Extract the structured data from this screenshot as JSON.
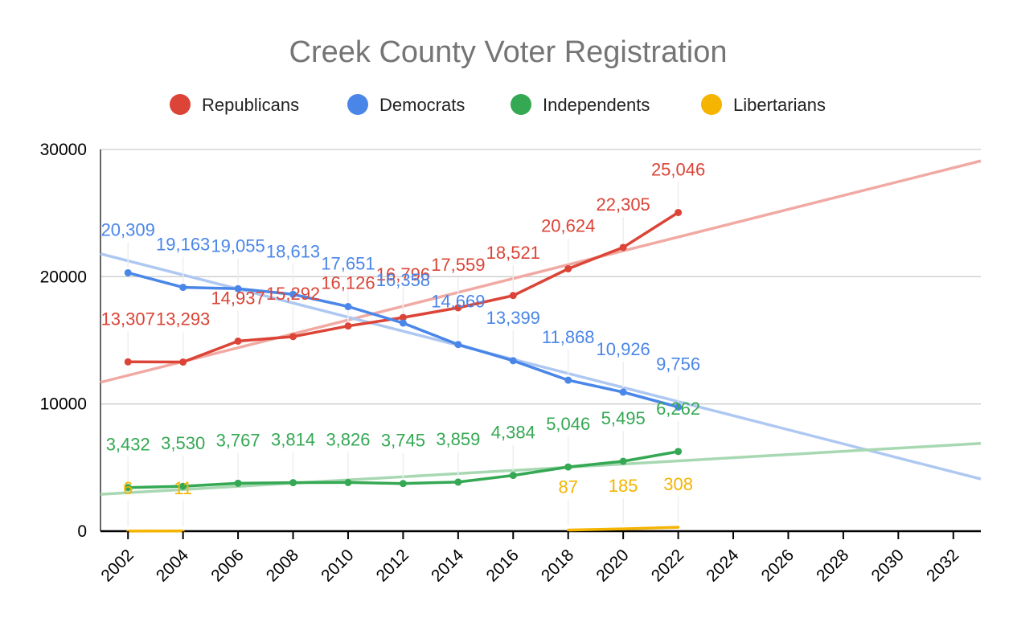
{
  "chart_data": {
    "type": "line",
    "title": "Creek County Voter Registration",
    "xlabel": "",
    "ylabel": "",
    "ylim": [
      0,
      30000
    ],
    "xlim": [
      2001,
      2033
    ],
    "y_ticks": [
      "0",
      "10000",
      "20000",
      "30000"
    ],
    "x_ticks": [
      "2002",
      "2004",
      "2006",
      "2008",
      "2010",
      "2012",
      "2014",
      "2016",
      "2018",
      "2020",
      "2022",
      "2024",
      "2026",
      "2028",
      "2030",
      "2032"
    ],
    "legend_position": "top",
    "grid": true,
    "series": [
      {
        "name": "Republicans",
        "color": "#db4437",
        "trend_color": "#f0aaa3",
        "x": [
          2002,
          2004,
          2006,
          2008,
          2010,
          2012,
          2014,
          2016,
          2018,
          2020,
          2022
        ],
        "values": [
          13307,
          13293,
          14937,
          15292,
          16126,
          16796,
          17559,
          18521,
          20624,
          22305,
          25046
        ],
        "labels": [
          "13,307",
          "13,293",
          "14,937",
          "15,292",
          "16,126",
          "16,796",
          "17,559",
          "18,521",
          "20,624",
          "22,305",
          "25,046"
        ],
        "trendline": {
          "from": [
            2001,
            11700
          ],
          "to": [
            2033,
            29100
          ]
        }
      },
      {
        "name": "Democrats",
        "color": "#4a86e8",
        "trend_color": "#aec8f2",
        "x": [
          2002,
          2004,
          2006,
          2008,
          2010,
          2012,
          2014,
          2016,
          2018,
          2020,
          2022
        ],
        "values": [
          20309,
          19163,
          19055,
          18613,
          17651,
          16358,
          14669,
          13399,
          11868,
          10926,
          9756
        ],
        "labels": [
          "20,309",
          "19,163",
          "19,055",
          "18,613",
          "17,651",
          "16,358",
          "14,669",
          "13,399",
          "11,868",
          "10,926",
          "9,756"
        ],
        "trendline": {
          "from": [
            2001,
            21800
          ],
          "to": [
            2033,
            4100
          ]
        }
      },
      {
        "name": "Independents",
        "color": "#34a853",
        "trend_color": "#a8d8b2",
        "x": [
          2002,
          2004,
          2006,
          2008,
          2010,
          2012,
          2014,
          2016,
          2018,
          2020,
          2022
        ],
        "values": [
          3432,
          3530,
          3767,
          3814,
          3826,
          3745,
          3859,
          4384,
          5046,
          5495,
          6262
        ],
        "labels": [
          "3,432",
          "3,530",
          "3,767",
          "3,814",
          "3,826",
          "3,745",
          "3,859",
          "4,384",
          "5,046",
          "5,495",
          "6,262"
        ],
        "trendline": {
          "from": [
            2001,
            2900
          ],
          "to": [
            2033,
            6900
          ]
        }
      },
      {
        "name": "Libertarians",
        "color": "#f4b400",
        "trend_color": "#f9dd8a",
        "x": [
          2002,
          2004,
          2018,
          2020,
          2022
        ],
        "values": [
          6,
          11,
          87,
          185,
          308
        ],
        "labels": [
          "6",
          "11",
          "87",
          "185",
          "308"
        ],
        "segments": [
          [
            0,
            1
          ],
          [
            2,
            4
          ]
        ],
        "trendline": null
      }
    ]
  }
}
